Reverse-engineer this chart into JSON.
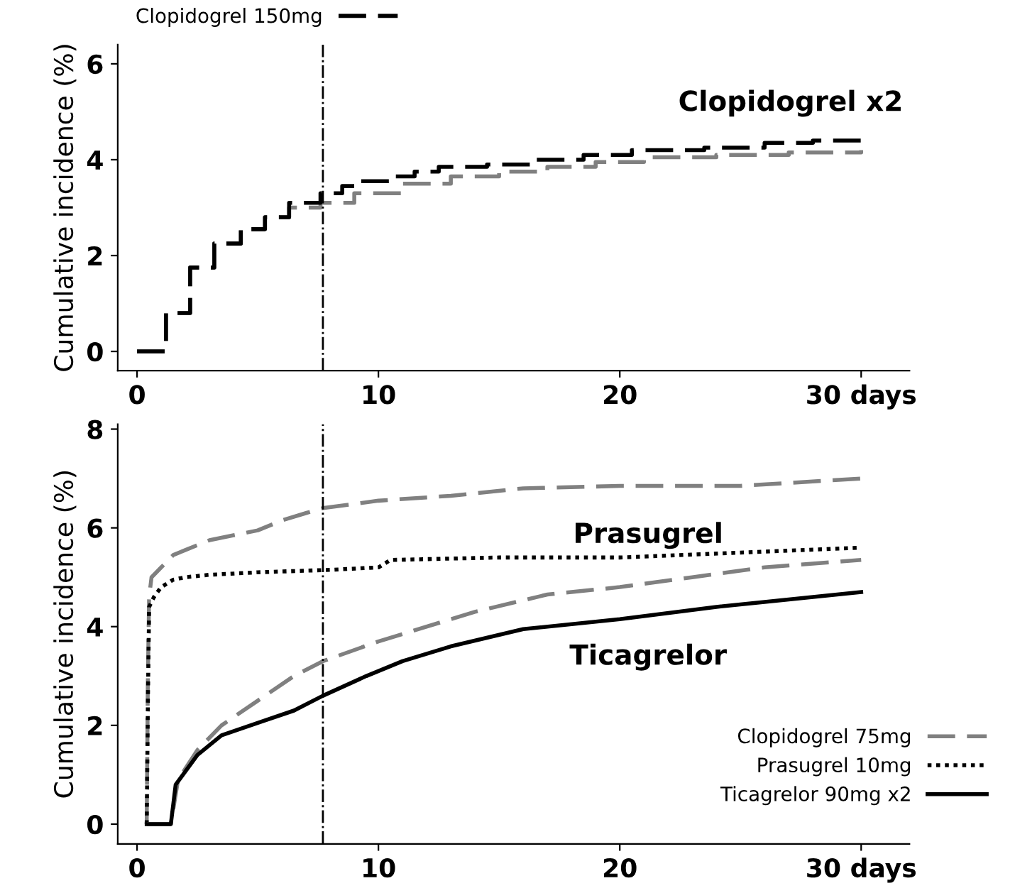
{
  "chart_data": [
    {
      "type": "step",
      "ylabel": "Cumulative incidence (%)",
      "annotations": [
        "Clopidogrel x2"
      ],
      "xlim": [
        -0.8,
        32
      ],
      "ylim": [
        -0.4,
        6.4
      ],
      "xticks": [
        0,
        10,
        20,
        {
          "value": 30,
          "label": "30 days"
        }
      ],
      "yticks": [
        0,
        2,
        4,
        6
      ],
      "grid": false,
      "legend": "top left",
      "marker": "none",
      "ref_lines": [
        {
          "axis": "x",
          "value": 7.7,
          "label": null,
          "color": "#000000",
          "line_style": "dashdot"
        }
      ],
      "series": [
        {
          "color": "#808080",
          "line_style": "dashed",
          "x": [
            0,
            1.2,
            2.2,
            3.2,
            4.3,
            5.3,
            6.3,
            7.6,
            9,
            11,
            13,
            15,
            17,
            19,
            21,
            24,
            27,
            30
          ],
          "values": [
            0,
            0.8,
            1.75,
            2.25,
            2.55,
            2.8,
            3.0,
            3.1,
            3.3,
            3.5,
            3.65,
            3.75,
            3.85,
            3.95,
            4.05,
            4.1,
            4.15,
            4.2
          ]
        },
        {
          "name": "Clopidogrel 150mg",
          "color": "#000000",
          "line_style": "dashed",
          "x": [
            0,
            1.2,
            2.2,
            3.2,
            4.3,
            5.3,
            6.3,
            7.6,
            8.5,
            9.2,
            10.5,
            11.5,
            12.5,
            14.5,
            16.5,
            18.5,
            20.5,
            23.5,
            26,
            28,
            30
          ],
          "values": [
            0,
            0.8,
            1.75,
            2.25,
            2.55,
            2.8,
            3.1,
            3.3,
            3.45,
            3.55,
            3.65,
            3.75,
            3.85,
            3.9,
            4.0,
            4.1,
            4.2,
            4.25,
            4.35,
            4.4,
            4.4
          ]
        }
      ]
    },
    {
      "type": "line",
      "ylabel": "Cumulative incidence (%)",
      "annotations": [
        "Prasugrel",
        "Ticagrelor"
      ],
      "xlim": [
        -0.8,
        32
      ],
      "ylim": [
        -0.4,
        8.1
      ],
      "xticks": [
        0,
        10,
        20,
        {
          "value": 30,
          "label": "30 days"
        }
      ],
      "yticks": [
        0,
        2,
        4,
        6,
        8
      ],
      "grid": false,
      "legend": "bottom right",
      "marker": "none",
      "ref_lines": [
        {
          "axis": "x",
          "value": 7.7,
          "label": null,
          "color": "#000000",
          "line_style": "dashdot"
        }
      ],
      "series": [
        {
          "name": "Clopidogrel 75mg",
          "color": "#808080",
          "line_style": "dashed",
          "x": [
            0.4,
            0.45,
            0.5,
            0.6,
            1.0,
            1.5,
            2,
            3,
            4,
            5,
            6,
            7,
            7.7,
            10,
            13,
            16,
            20,
            25,
            30
          ],
          "values": [
            0,
            3.0,
            4.6,
            5.0,
            5.2,
            5.45,
            5.55,
            5.75,
            5.85,
            5.95,
            6.15,
            6.3,
            6.4,
            6.55,
            6.65,
            6.8,
            6.85,
            6.85,
            7.0
          ]
        },
        {
          "name": "Prasugrel 10mg",
          "color": "#000000",
          "line_style": "dotted",
          "x": [
            0.4,
            0.45,
            0.5,
            0.7,
            1,
            1.5,
            2,
            3,
            5,
            8,
            10,
            10.5,
            15,
            20,
            25,
            30
          ],
          "values": [
            0,
            2.5,
            4.4,
            4.6,
            4.8,
            4.95,
            5.0,
            5.05,
            5.1,
            5.15,
            5.2,
            5.35,
            5.4,
            5.4,
            5.5,
            5.6
          ]
        },
        {
          "color": "#808080",
          "line_style": "dashed",
          "x": [
            0.4,
            1.4,
            1.7,
            2.5,
            3.5,
            5,
            6.5,
            7.7,
            10,
            14,
            17,
            20,
            23,
            26,
            30
          ],
          "values": [
            0,
            0,
            0.9,
            1.5,
            2.0,
            2.5,
            3.0,
            3.3,
            3.7,
            4.3,
            4.65,
            4.8,
            5.0,
            5.2,
            5.35
          ]
        },
        {
          "name": "Ticagrelor 90mg x2",
          "color": "#000000",
          "line_style": "solid",
          "x": [
            0.4,
            1.4,
            1.6,
            2.5,
            3.5,
            5,
            6.5,
            7.7,
            9.5,
            11,
            13,
            16,
            20,
            24,
            27,
            30
          ],
          "values": [
            0,
            0,
            0.8,
            1.4,
            1.8,
            2.05,
            2.3,
            2.6,
            3.0,
            3.3,
            3.6,
            3.95,
            4.15,
            4.4,
            4.55,
            4.7
          ]
        }
      ]
    }
  ]
}
